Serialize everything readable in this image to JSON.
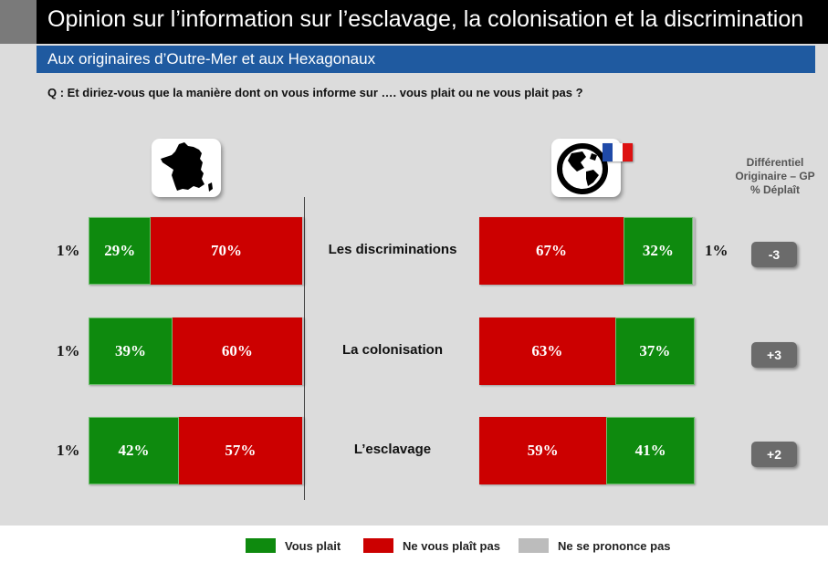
{
  "header": {
    "title": "Opinion sur l’information sur l’esclavage, la colonisation et la discrimination",
    "subtitle": "Aux originaires d’Outre-Mer et aux Hexagonaux",
    "question": "Q : Et diriez-vous que la manière dont on vous informe sur …. vous plait ou ne vous plait pas ?"
  },
  "icons": {
    "left": "france-map-icon",
    "right": "globe-icon",
    "flag": "french-flag-icon"
  },
  "differential_header": [
    "Différentiel",
    "Originaire – GP",
    "% Déplaît"
  ],
  "colors": {
    "plait": "#0e8a0e",
    "ne_plait_pas": "#cc0000",
    "ne_se_prononce_pas": "#bcbcbc",
    "subtitle_bar": "#1f5aa0"
  },
  "chart_data": {
    "type": "bar",
    "orientation": "horizontal-stacked",
    "categories": [
      "Les discriminations",
      "La colonisation",
      "L’esclavage"
    ],
    "groups": [
      {
        "icon": "france-map-icon",
        "series": [
          {
            "name": "Vous plait",
            "values": [
              29,
              39,
              42
            ]
          },
          {
            "name": "Ne vous plaît pas",
            "values": [
              70,
              60,
              57
            ]
          },
          {
            "name": "Ne se prononce pas",
            "values": [
              1,
              1,
              1
            ]
          }
        ]
      },
      {
        "icon": "globe-icon",
        "series": [
          {
            "name": "Vous plait",
            "values": [
              32,
              37,
              41
            ]
          },
          {
            "name": "Ne vous plaît pas",
            "values": [
              67,
              63,
              59
            ]
          },
          {
            "name": "Ne se prononce pas",
            "values": [
              1,
              0,
              0
            ]
          }
        ]
      }
    ],
    "value_labels": {
      "left": {
        "plait": [
          "29%",
          "39%",
          "42%"
        ],
        "ne_plait_pas": [
          "70%",
          "60%",
          "57%"
        ],
        "np": [
          "1%",
          "1%",
          "1%"
        ]
      },
      "right": {
        "plait": [
          "32%",
          "37%",
          "41%"
        ],
        "ne_plait_pas": [
          "67%",
          "63%",
          "59%"
        ],
        "np": [
          "1%",
          "",
          ""
        ]
      }
    },
    "differential": [
      "-3",
      "+3",
      "+2"
    ],
    "legend": {
      "placement": "bottom",
      "items": [
        "Vous plait",
        "Ne vous plaît pas",
        "Ne se prononce pas"
      ]
    }
  }
}
